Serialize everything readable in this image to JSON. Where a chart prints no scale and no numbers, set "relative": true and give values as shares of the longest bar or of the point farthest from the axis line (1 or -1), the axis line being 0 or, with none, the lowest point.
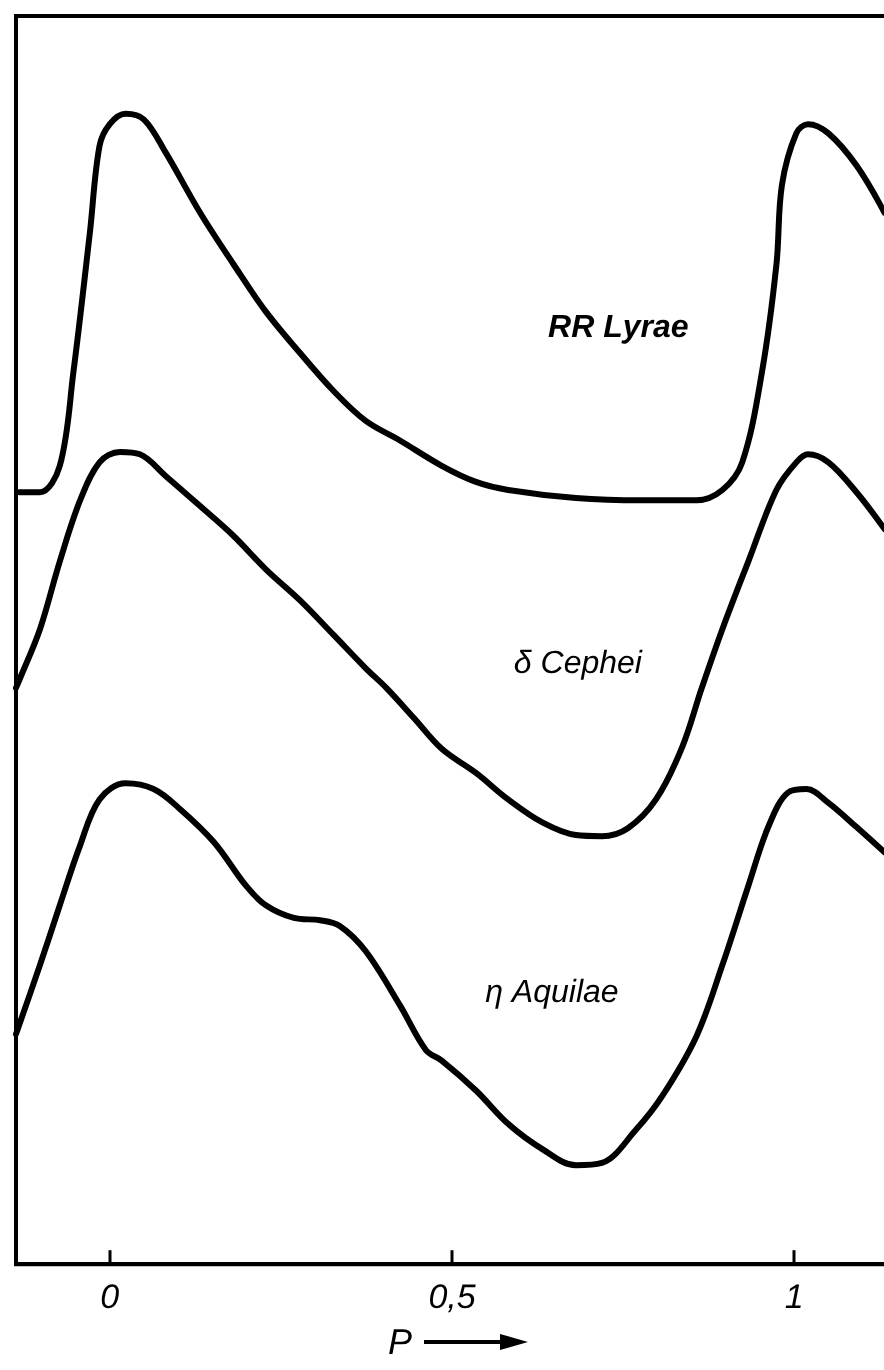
{
  "chart_data": {
    "type": "line",
    "relative": true,
    "xlabel": "P",
    "xlim": [
      -0.137,
      1.137
    ],
    "xticks": [
      0,
      {
        "value": 0.5,
        "label": "0,5"
      },
      1
    ],
    "series": [
      {
        "name": "RR Lyrae",
        "color": "#000000",
        "x": [
          -0.132,
          -0.102,
          -0.073,
          -0.053,
          -0.029,
          -0.015,
          0,
          0.023,
          0.05,
          0.082,
          0.132,
          0.181,
          0.228,
          0.278,
          0.327,
          0.374,
          0.424,
          0.485,
          0.535,
          0.582,
          0.681,
          0.778,
          0.857,
          0.895,
          0.924,
          0.953,
          0.974,
          0.982,
          1.003,
          1.02,
          1.05,
          1.091,
          1.132
        ],
        "values": [
          0.671,
          0.671,
          0.694,
          0.776,
          0.897,
          0.972,
          0.991,
          1,
          0.995,
          0.966,
          0.914,
          0.869,
          0.828,
          0.792,
          0.759,
          0.733,
          0.716,
          0.694,
          0.68,
          0.673,
          0.666,
          0.664,
          0.664,
          0.673,
          0.697,
          0.776,
          0.869,
          0.938,
          0.983,
          0.991,
          0.983,
          0.955,
          0.914
        ]
      },
      {
        "name": "δ Cephei",
        "color": "#000000",
        "x": [
          -0.137,
          -0.132,
          -0.102,
          -0.073,
          -0.044,
          -0.015,
          0.015,
          0.044,
          0.082,
          0.132,
          0.181,
          0.228,
          0.278,
          0.327,
          0.374,
          0.404,
          0.444,
          0.485,
          0.535,
          0.582,
          0.632,
          0.681,
          0.719,
          0.757,
          0.798,
          0.836,
          0.865,
          0.895,
          0.933,
          0.974,
          1.003,
          1.02,
          1.05,
          1.091,
          1.132
        ],
        "values": [
          0.501,
          0.508,
          0.552,
          0.611,
          0.663,
          0.697,
          0.706,
          0.704,
          0.685,
          0.659,
          0.633,
          0.604,
          0.577,
          0.547,
          0.518,
          0.501,
          0.475,
          0.448,
          0.427,
          0.404,
          0.384,
          0.373,
          0.372,
          0.379,
          0.404,
          0.449,
          0.501,
          0.552,
          0.611,
          0.673,
          0.697,
          0.704,
          0.697,
          0.671,
          0.639
        ]
      },
      {
        "name": "η Aquilae",
        "color": "#000000",
        "x": [
          -0.137,
          -0.102,
          -0.073,
          -0.044,
          -0.015,
          0.023,
          0.064,
          0.102,
          0.152,
          0.199,
          0.228,
          0.269,
          0.307,
          0.336,
          0.374,
          0.424,
          0.462,
          0.485,
          0.535,
          0.582,
          0.632,
          0.681,
          0.719,
          0.769,
          0.807,
          0.857,
          0.895,
          0.933,
          0.962,
          0.991,
          1.018,
          1.05,
          1.091,
          1.132
        ],
        "values": [
          0.2,
          0.26,
          0.312,
          0.363,
          0.404,
          0.418,
          0.413,
          0.396,
          0.367,
          0.329,
          0.312,
          0.301,
          0.299,
          0.294,
          0.272,
          0.225,
          0.186,
          0.177,
          0.151,
          0.122,
          0.1,
          0.086,
          0.088,
          0.117,
          0.146,
          0.198,
          0.26,
          0.329,
          0.38,
          0.41,
          0.413,
          0.401,
          0.38,
          0.358
        ]
      }
    ]
  }
}
